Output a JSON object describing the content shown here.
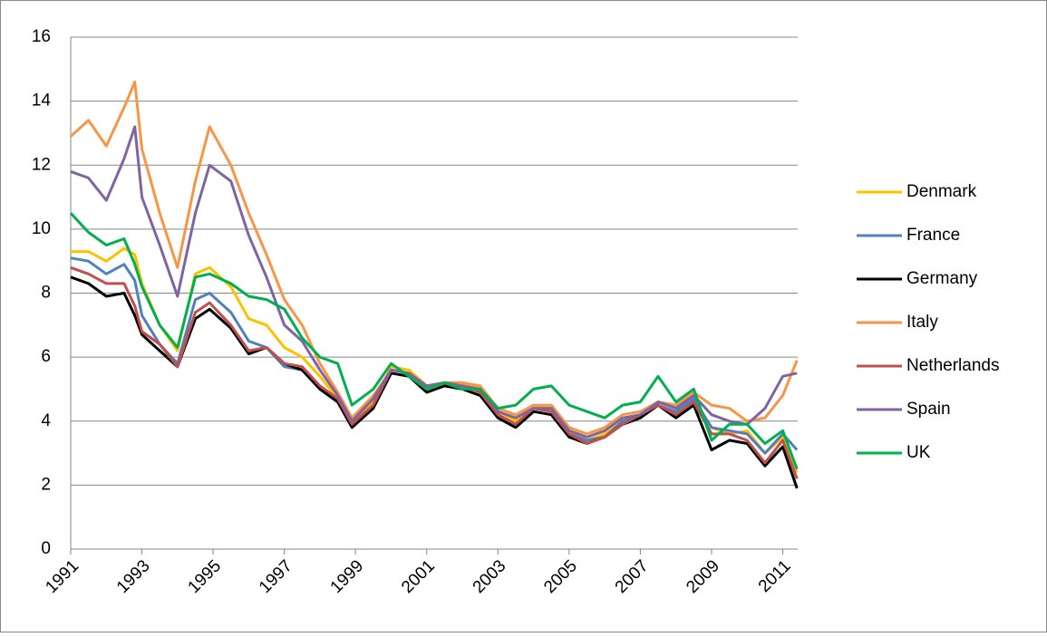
{
  "chart_data": {
    "type": "line",
    "x": [
      1991,
      1991.5,
      1992,
      1992.5,
      1992.8,
      1993,
      1993.5,
      1994,
      1994.5,
      1994.9,
      1995.5,
      1996,
      1996.5,
      1997,
      1997.5,
      1998,
      1998.5,
      1998.9,
      1999.5,
      2000,
      2000.5,
      2001,
      2001.5,
      2002,
      2002.5,
      2003,
      2003.5,
      2004,
      2004.5,
      2005,
      2005.5,
      2006,
      2006.5,
      2007,
      2007.5,
      2008,
      2008.5,
      2009,
      2009.5,
      2010,
      2010.5,
      2011,
      2011.4
    ],
    "xlim": [
      1991,
      2011.42
    ],
    "xticks": [
      1991,
      1993,
      1995,
      1997,
      1999,
      2001,
      2003,
      2005,
      2007,
      2009,
      2011
    ],
    "ylim": [
      0,
      16
    ],
    "yticks": [
      0,
      2,
      4,
      6,
      8,
      10,
      12,
      14,
      16
    ],
    "grid": true,
    "legend": "right",
    "series": [
      {
        "name": "Denmark",
        "color": "#ffc000",
        "values": [
          9.3,
          9.3,
          9.0,
          9.4,
          9.2,
          8.3,
          7.0,
          6.2,
          8.6,
          8.8,
          8.2,
          7.2,
          7.0,
          6.3,
          6.0,
          5.4,
          4.7,
          4.0,
          4.6,
          5.7,
          5.6,
          5.1,
          5.2,
          5.2,
          5.0,
          4.3,
          4.0,
          4.5,
          4.4,
          3.7,
          3.4,
          3.6,
          4.0,
          4.2,
          4.6,
          4.4,
          4.6,
          3.8,
          3.6,
          3.7,
          3.0,
          3.5,
          2.4
        ]
      },
      {
        "name": "France",
        "color": "#4f81bd",
        "values": [
          9.1,
          9.0,
          8.6,
          8.9,
          8.4,
          7.3,
          6.4,
          5.8,
          7.8,
          8.0,
          7.4,
          6.5,
          6.3,
          5.7,
          5.6,
          5.0,
          4.6,
          3.9,
          4.5,
          5.6,
          5.5,
          5.0,
          5.2,
          5.1,
          4.9,
          4.2,
          3.9,
          4.4,
          4.3,
          3.6,
          3.4,
          3.5,
          4.0,
          4.2,
          4.5,
          4.3,
          4.7,
          3.8,
          3.7,
          3.6,
          3.0,
          3.6,
          3.1
        ]
      },
      {
        "name": "Germany",
        "color": "#000000",
        "values": [
          8.5,
          8.3,
          7.9,
          8.0,
          7.3,
          6.7,
          6.2,
          5.7,
          7.2,
          7.5,
          6.9,
          6.1,
          6.3,
          5.8,
          5.6,
          5.0,
          4.6,
          3.8,
          4.4,
          5.5,
          5.4,
          4.9,
          5.1,
          5.0,
          4.8,
          4.1,
          3.8,
          4.3,
          4.2,
          3.5,
          3.3,
          3.5,
          3.9,
          4.1,
          4.5,
          4.1,
          4.5,
          3.1,
          3.4,
          3.3,
          2.6,
          3.2,
          1.9
        ]
      },
      {
        "name": "Italy",
        "color": "#f79646",
        "values": [
          12.9,
          13.4,
          12.6,
          13.8,
          14.6,
          12.5,
          10.5,
          8.8,
          11.5,
          13.2,
          12.0,
          10.5,
          9.2,
          7.8,
          7.0,
          5.8,
          4.9,
          4.1,
          4.8,
          5.6,
          5.5,
          5.1,
          5.2,
          5.2,
          5.1,
          4.4,
          4.2,
          4.5,
          4.5,
          3.8,
          3.6,
          3.8,
          4.2,
          4.3,
          4.6,
          4.5,
          4.9,
          4.5,
          4.4,
          4.0,
          4.1,
          4.8,
          5.9
        ]
      },
      {
        "name": "Netherlands",
        "color": "#c0504d",
        "values": [
          8.8,
          8.6,
          8.3,
          8.3,
          7.6,
          6.8,
          6.4,
          5.7,
          7.4,
          7.7,
          7.0,
          6.2,
          6.3,
          5.8,
          5.7,
          5.1,
          4.7,
          3.9,
          4.5,
          5.6,
          5.5,
          5.0,
          5.2,
          5.1,
          4.9,
          4.2,
          3.9,
          4.4,
          4.3,
          3.6,
          3.3,
          3.5,
          3.9,
          4.2,
          4.5,
          4.2,
          4.6,
          3.6,
          3.6,
          3.4,
          2.7,
          3.4,
          2.2
        ]
      },
      {
        "name": "Spain",
        "color": "#8064a2",
        "values": [
          11.8,
          11.6,
          10.9,
          12.2,
          13.2,
          11.0,
          9.5,
          7.9,
          10.5,
          12.0,
          11.5,
          9.8,
          8.5,
          7.0,
          6.5,
          5.6,
          4.8,
          4.0,
          4.7,
          5.6,
          5.5,
          5.1,
          5.2,
          5.1,
          5.0,
          4.3,
          4.1,
          4.4,
          4.4,
          3.7,
          3.5,
          3.7,
          4.1,
          4.2,
          4.6,
          4.4,
          4.8,
          4.2,
          4.0,
          3.9,
          4.4,
          5.4,
          5.5
        ]
      },
      {
        "name": "UK",
        "color": "#00b050",
        "values": [
          10.5,
          9.9,
          9.5,
          9.7,
          8.9,
          8.2,
          7.0,
          6.3,
          8.5,
          8.6,
          8.3,
          7.9,
          7.8,
          7.5,
          6.6,
          6.0,
          5.8,
          4.5,
          5.0,
          5.8,
          5.4,
          5.0,
          5.2,
          5.0,
          5.0,
          4.4,
          4.5,
          5.0,
          5.1,
          4.5,
          4.3,
          4.1,
          4.5,
          4.6,
          5.4,
          4.6,
          5.0,
          3.4,
          3.9,
          3.9,
          3.3,
          3.7,
          2.5
        ]
      }
    ]
  }
}
